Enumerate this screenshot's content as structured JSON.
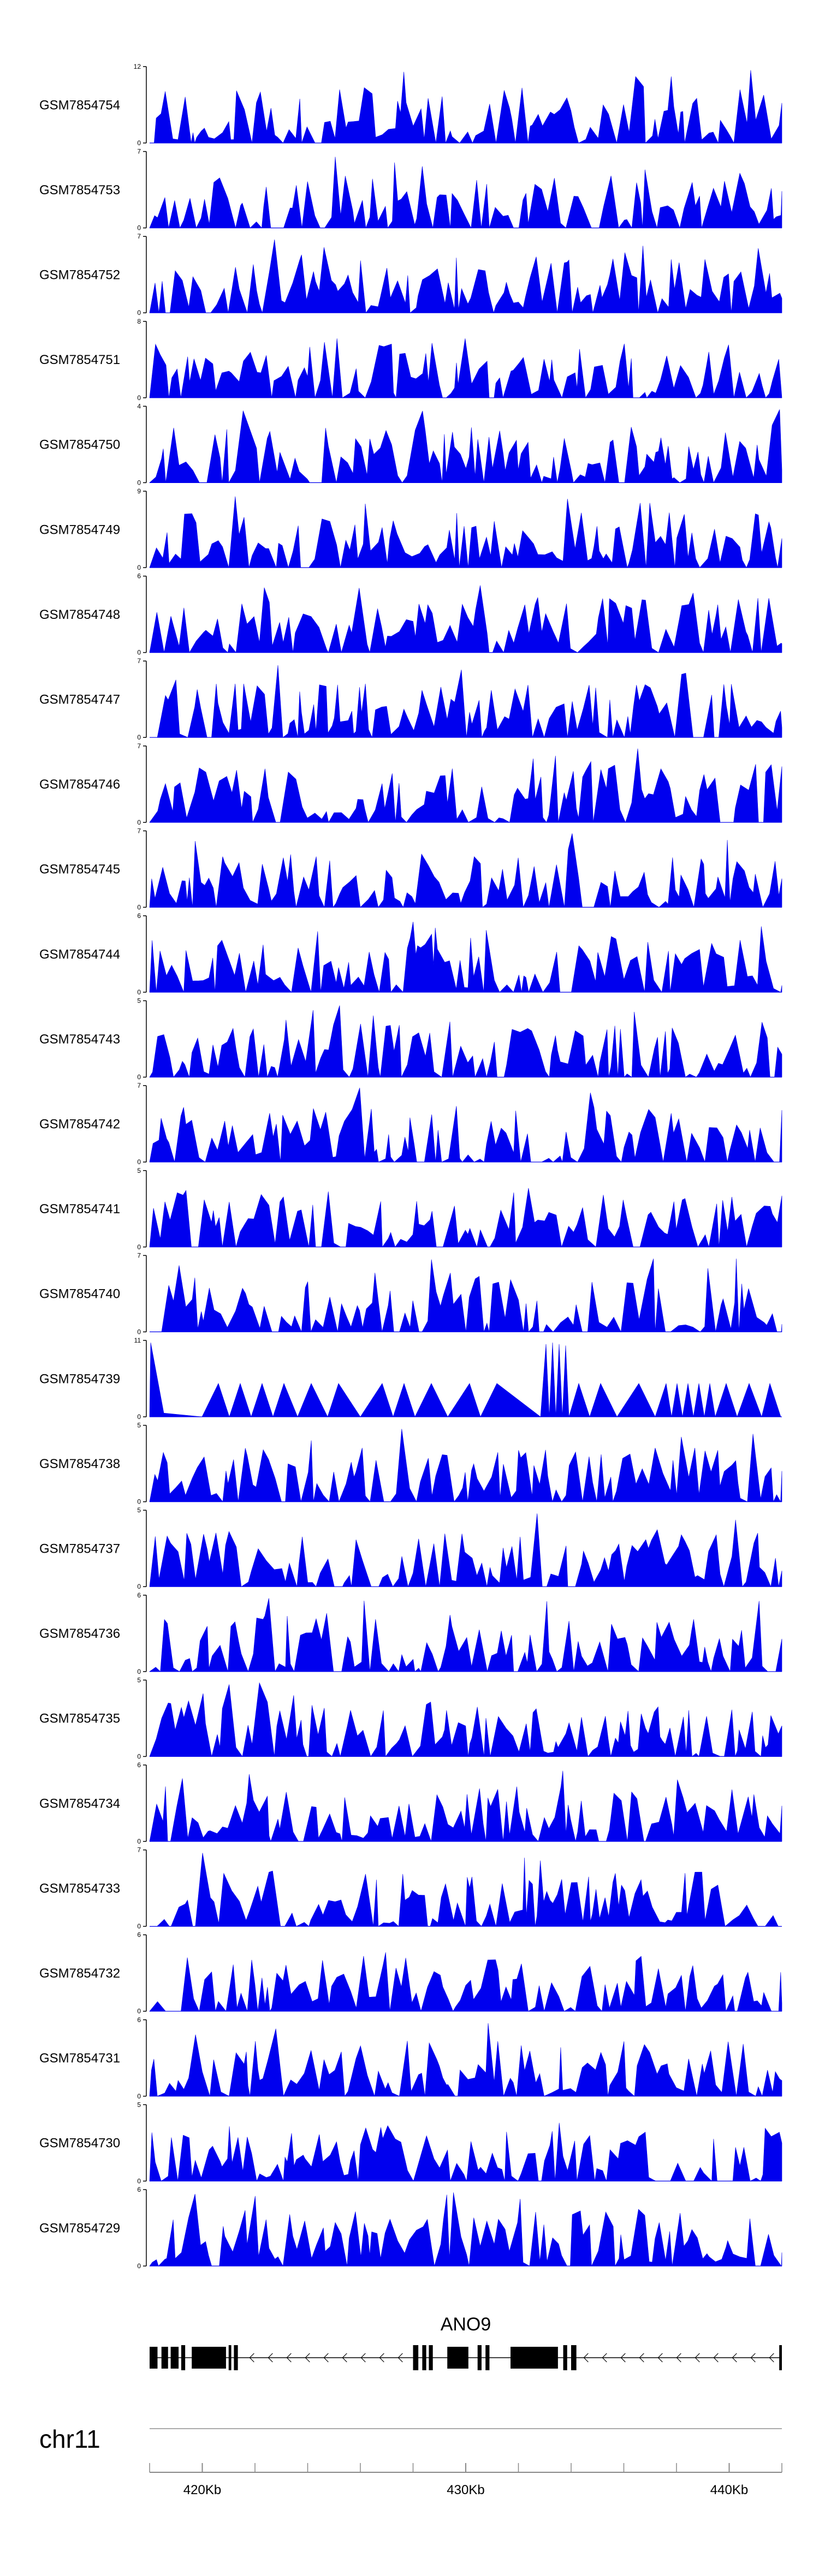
{
  "chart_data": {
    "type": "area",
    "title": "",
    "color": "#0000ee",
    "x_unit": "Kb",
    "x_range": [
      418,
      442
    ],
    "tracks": [
      {
        "name": "GSM7854754",
        "ymax": 12
      },
      {
        "name": "GSM7854753",
        "ymax": 7
      },
      {
        "name": "GSM7854752",
        "ymax": 7
      },
      {
        "name": "GSM7854751",
        "ymax": 8
      },
      {
        "name": "GSM7854750",
        "ymax": 4
      },
      {
        "name": "GSM7854749",
        "ymax": 9
      },
      {
        "name": "GSM7854748",
        "ymax": 6
      },
      {
        "name": "GSM7854747",
        "ymax": 7
      },
      {
        "name": "GSM7854746",
        "ymax": 7
      },
      {
        "name": "GSM7854745",
        "ymax": 7
      },
      {
        "name": "GSM7854744",
        "ymax": 6
      },
      {
        "name": "GSM7854743",
        "ymax": 5
      },
      {
        "name": "GSM7854742",
        "ymax": 7
      },
      {
        "name": "GSM7854741",
        "ymax": 5
      },
      {
        "name": "GSM7854740",
        "ymax": 7
      },
      {
        "name": "GSM7854739",
        "ymax": 11
      },
      {
        "name": "GSM7854738",
        "ymax": 5
      },
      {
        "name": "GSM7854737",
        "ymax": 5
      },
      {
        "name": "GSM7854736",
        "ymax": 6
      },
      {
        "name": "GSM7854735",
        "ymax": 5
      },
      {
        "name": "GSM7854734",
        "ymax": 6
      },
      {
        "name": "GSM7854733",
        "ymax": 7
      },
      {
        "name": "GSM7854732",
        "ymax": 6
      },
      {
        "name": "GSM7854731",
        "ymax": 6
      },
      {
        "name": "GSM7854730",
        "ymax": 5
      },
      {
        "name": "GSM7854729",
        "ymax": 6
      }
    ],
    "gene": {
      "name": "ANO9",
      "strand": "-",
      "exons_kb": [
        [
          418.0,
          418.3
        ],
        [
          418.45,
          418.7
        ],
        [
          418.8,
          419.1
        ],
        [
          419.2,
          419.35
        ],
        [
          419.6,
          420.9
        ],
        [
          421.0,
          421.1
        ],
        [
          421.2,
          421.35
        ],
        [
          428.0,
          428.2
        ],
        [
          428.35,
          428.5
        ],
        [
          428.6,
          428.75
        ],
        [
          429.3,
          430.1
        ],
        [
          430.45,
          430.6
        ],
        [
          430.75,
          430.9
        ],
        [
          431.7,
          433.5
        ],
        [
          433.7,
          433.85
        ],
        [
          434.0,
          434.2
        ],
        [
          441.9,
          442.0
        ]
      ],
      "intron_range_kb": [
        418.0,
        442.0
      ]
    },
    "chromosome": "chr11",
    "x_ticks": [
      {
        "value": 420,
        "label": "420Kb"
      },
      {
        "value": 430,
        "label": "430Kb"
      },
      {
        "value": 440,
        "label": "440Kb"
      }
    ]
  }
}
